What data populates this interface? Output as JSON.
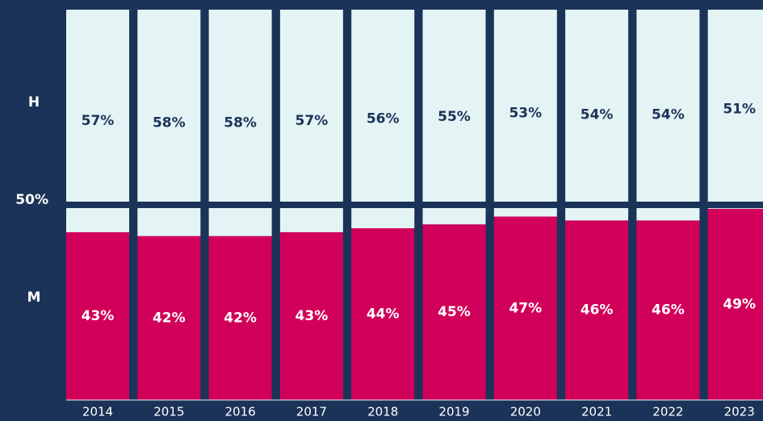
{
  "chart_data": {
    "type": "stacked_bar",
    "categories": [
      "2014",
      "2015",
      "2016",
      "2017",
      "2018",
      "2019",
      "2020",
      "2021",
      "2022",
      "2023"
    ],
    "series": [
      {
        "name": "H",
        "color": "#e4f3f4",
        "label_color": "#1b3358",
        "values": [
          57,
          58,
          58,
          57,
          56,
          55,
          53,
          54,
          54,
          51
        ],
        "value_labels": [
          "57%",
          "58%",
          "58%",
          "57%",
          "56%",
          "55%",
          "53%",
          "54%",
          "54%",
          "51%"
        ]
      },
      {
        "name": "M",
        "color": "#d1005a",
        "label_color": "#ffffff",
        "values": [
          43,
          42,
          42,
          43,
          44,
          45,
          47,
          46,
          46,
          49
        ],
        "value_labels": [
          "43%",
          "42%",
          "42%",
          "43%",
          "44%",
          "45%",
          "47%",
          "46%",
          "46%",
          "49%"
        ]
      }
    ],
    "ylim": [
      0,
      100
    ],
    "yticks": [
      {
        "value": 50,
        "label": "50%"
      }
    ],
    "grid": true
  }
}
